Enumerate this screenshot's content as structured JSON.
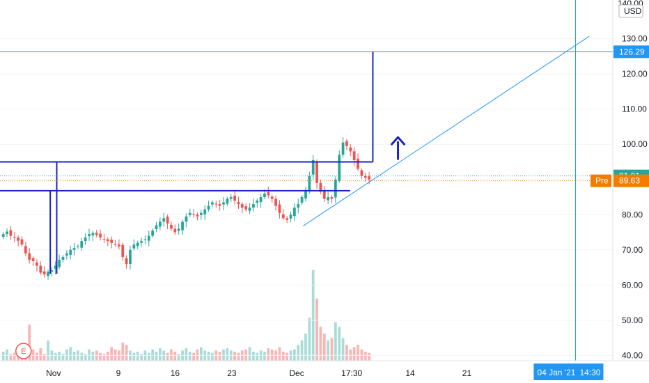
{
  "chart_data": {
    "type": "candlestick",
    "currency": "USD",
    "price_axis": {
      "top_label": "140.00",
      "ticks": [
        40,
        50,
        60,
        70,
        80,
        90,
        100,
        110,
        120,
        130
      ],
      "tick_labels": [
        "40.00",
        "50.00",
        "60.00",
        "70.00",
        "80.00",
        "90.00",
        "100.00",
        "110.00",
        "120.00",
        "130.00"
      ],
      "range": [
        38.5,
        141
      ]
    },
    "time_axis": {
      "labels": [
        {
          "text": "Nov",
          "day": 10
        },
        {
          "text": "9",
          "day": 18
        },
        {
          "text": "16",
          "day": 25
        },
        {
          "text": "23",
          "day": 32
        },
        {
          "text": "Dec",
          "day": 40
        },
        {
          "text": "17:30",
          "day": 46.8
        },
        {
          "text": "14",
          "day": 54
        },
        {
          "text": "21",
          "day": 61
        }
      ],
      "crosshair_label": "04 Jan '21",
      "crosshair_time": "14:30",
      "crosshair_day": 74.4,
      "range": [
        3.4,
        79
      ]
    },
    "price_tags": [
      {
        "label": "",
        "value": 126.29,
        "text": "126.29",
        "color": "#2196f3"
      },
      {
        "label": "",
        "value": 91.01,
        "text": "91.01",
        "color": "#26a69a"
      },
      {
        "label": "Pre",
        "value": 89.63,
        "text": "89.63",
        "color": "#f57c00"
      }
    ],
    "closes": [
      74.5,
      75.2,
      74.0,
      73.5,
      72.6,
      71.5,
      69.0,
      67.2,
      66.8,
      65.5,
      63.5,
      63.0,
      63.8,
      64.2,
      65.5,
      67.2,
      68.0,
      69.0,
      70.0,
      70.5,
      71.0,
      72.5,
      73.5,
      74.5,
      74.8,
      74.2,
      73.5,
      73.0,
      72.5,
      72.0,
      71.5,
      71.0,
      68.0,
      66.0,
      70.0,
      71.5,
      72.0,
      72.5,
      73.0,
      74.0,
      75.5,
      77.0,
      78.0,
      79.0,
      77.5,
      76.0,
      75.0,
      76.0,
      78.0,
      79.5,
      80.5,
      80.0,
      79.5,
      80.5,
      81.5,
      82.5,
      83.5,
      83.0,
      82.5,
      83.5,
      84.5,
      85.0,
      84.0,
      83.0,
      82.0,
      81.5,
      82.0,
      83.0,
      84.0,
      85.0,
      86.0,
      85.5,
      84.5,
      82.5,
      80.5,
      79.0,
      78.5,
      80.0,
      82.0,
      83.0,
      85.0,
      87.0,
      91.0,
      95.5,
      89.0,
      86.5,
      84.5,
      85.0,
      84.5,
      90.0,
      97.0,
      100.5,
      99.5,
      98.0,
      95.5,
      93.0,
      91.0,
      90.5,
      90.0
    ],
    "volumes": [
      8,
      10,
      6,
      7,
      12,
      9,
      14,
      32,
      10,
      7,
      11,
      6,
      18,
      9,
      7,
      8,
      6,
      10,
      12,
      8,
      9,
      7,
      6,
      10,
      8,
      9,
      7,
      6,
      8,
      12,
      10,
      9,
      16,
      14,
      9,
      7,
      8,
      6,
      9,
      7,
      10,
      8,
      11,
      9,
      7,
      10,
      8,
      6,
      9,
      11,
      8,
      7,
      10,
      12,
      9,
      8,
      7,
      9,
      8,
      10,
      11,
      9,
      8,
      7,
      9,
      10,
      12,
      8,
      7,
      9,
      8,
      11,
      10,
      9,
      12,
      8,
      7,
      9,
      10,
      14,
      18,
      24,
      38,
      80,
      55,
      30,
      24,
      18,
      20,
      34,
      30,
      20,
      14,
      10,
      12,
      14,
      10,
      8,
      7
    ],
    "volume_max": 80,
    "earnings_marker": "E",
    "drawings": {
      "resistance_level": 95.0,
      "support_level": 86.8,
      "target_level": 126.29,
      "trendline_start": {
        "day": 40.8,
        "price": 76.8
      },
      "trendline_end": {
        "day": 76.1,
        "price": 130.7
      },
      "upper_start_day": 3.4,
      "upper_end_day": 49.4,
      "target_start_day": 3.4,
      "lower_start_day": 3.4,
      "lower_end_day": 46.6,
      "low_drop_day": 9.6,
      "low_drop_price": 63.2,
      "tall_drop_day": 10.4,
      "tall_drop_price": 63.2,
      "target_bar_day": 49.4,
      "arrow_day": 52.5,
      "arrow_base_price": 95.6,
      "arrow_tip_price": 102.0
    }
  }
}
